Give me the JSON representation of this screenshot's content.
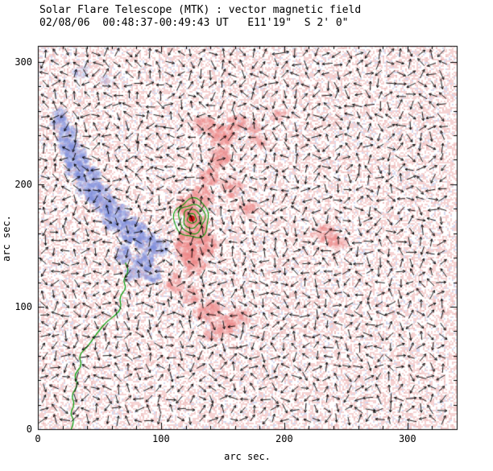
{
  "header": {
    "title_line1": "Solar Flare Telescope (MTK) : vector magnetic field",
    "title_line2": "02/08/06  00:48:37-00:49:43 UT   E11'19\"  S 2' 0\""
  },
  "axes": {
    "xlabel": "arc sec.",
    "ylabel": "arc sec.",
    "x_tick_labels": [
      "0",
      "100",
      "200",
      "300"
    ],
    "y_tick_labels": [
      "0",
      "100",
      "200",
      "300"
    ]
  },
  "chart_data": {
    "type": "heatmap",
    "subtype": "vector-magnetogram",
    "title": "Solar Flare Telescope (MTK) : vector magnetic field",
    "subtitle": "02/08/06  00:48:37-00:49:43 UT   E11'19\"  S 2' 0\"",
    "xlabel": "arc sec.",
    "ylabel": "arc sec.",
    "xlim": [
      0,
      340
    ],
    "ylim": [
      0,
      313
    ],
    "x_ticks": [
      0,
      100,
      200,
      300
    ],
    "y_ticks": [
      0,
      100,
      200,
      300
    ],
    "grid": false,
    "colors": {
      "positive_polarity": "#ee8585",
      "negative_polarity": "#7f8fdd",
      "contour": "#009900",
      "neutral_line": "#009900",
      "flare_core": "#cc1111",
      "arrows": "#000000",
      "background_speckle_pos": "#f5d2d2",
      "background_speckle_pos_dark": "#eec0c0",
      "background_speckle_neg": "#d6daf1"
    },
    "flare_core": {
      "x": 125,
      "y": 172,
      "radius_arcsec": 3
    },
    "contour_radii_arcsec": [
      3.5,
      7,
      10.5,
      14
    ],
    "negative_blobs": [
      [
        18,
        252,
        7,
        10,
        0.9
      ],
      [
        24,
        236,
        9,
        13,
        1.0
      ],
      [
        32,
        218,
        10,
        15,
        1.1
      ],
      [
        42,
        200,
        10,
        14,
        1.1
      ],
      [
        52,
        186,
        10,
        13,
        1.0
      ],
      [
        63,
        174,
        11,
        12,
        1.0
      ],
      [
        76,
        162,
        12,
        11,
        1.1
      ],
      [
        89,
        153,
        10,
        9,
        1.0
      ],
      [
        99,
        148,
        8,
        7,
        0.8
      ],
      [
        86,
        137,
        9,
        8,
        0.9
      ],
      [
        93,
        126,
        8,
        7,
        0.8
      ],
      [
        77,
        127,
        7,
        6,
        0.7
      ],
      [
        70,
        143,
        8,
        7,
        0.8
      ],
      [
        35,
        292,
        8,
        5,
        0.4
      ],
      [
        55,
        285,
        6,
        4,
        0.3
      ]
    ],
    "positive_blobs": [
      [
        125,
        172,
        6,
        7,
        1.6
      ],
      [
        122,
        182,
        9,
        10,
        1.2
      ],
      [
        130,
        163,
        10,
        11,
        1.2
      ],
      [
        120,
        150,
        11,
        12,
        1.1
      ],
      [
        127,
        136,
        10,
        10,
        1.0
      ],
      [
        137,
        150,
        9,
        9,
        0.9
      ],
      [
        133,
        190,
        9,
        9,
        1.0
      ],
      [
        140,
        205,
        9,
        8,
        0.9
      ],
      [
        147,
        222,
        10,
        9,
        0.9
      ],
      [
        150,
        240,
        12,
        9,
        1.0
      ],
      [
        135,
        248,
        9,
        7,
        0.8
      ],
      [
        163,
        250,
        9,
        7,
        0.8
      ],
      [
        176,
        246,
        7,
        6,
        0.6
      ],
      [
        112,
        118,
        8,
        8,
        0.8
      ],
      [
        125,
        108,
        8,
        7,
        0.7
      ],
      [
        138,
        96,
        11,
        9,
        0.9
      ],
      [
        152,
        86,
        11,
        8,
        0.9
      ],
      [
        165,
        92,
        8,
        7,
        0.7
      ],
      [
        143,
        78,
        8,
        6,
        0.7
      ],
      [
        158,
        198,
        9,
        8,
        0.7
      ],
      [
        170,
        180,
        8,
        7,
        0.6
      ],
      [
        180,
        235,
        8,
        6,
        0.5
      ],
      [
        232,
        160,
        11,
        7,
        0.8
      ],
      [
        244,
        152,
        8,
        6,
        0.7
      ],
      [
        196,
        256,
        7,
        5,
        0.6
      ]
    ],
    "neutral_line": [
      [
        27,
        0
      ],
      [
        30,
        6
      ],
      [
        26,
        13
      ],
      [
        30,
        20
      ],
      [
        27,
        28
      ],
      [
        33,
        36
      ],
      [
        29,
        44
      ],
      [
        36,
        52
      ],
      [
        33,
        60
      ],
      [
        40,
        67
      ],
      [
        45,
        74
      ],
      [
        50,
        81
      ],
      [
        56,
        88
      ],
      [
        63,
        93
      ],
      [
        68,
        99
      ],
      [
        66,
        108
      ],
      [
        72,
        115
      ],
      [
        69,
        122
      ],
      [
        74,
        129
      ],
      [
        71,
        136
      ]
    ],
    "arrow_grid_spacing_px": 13
  }
}
